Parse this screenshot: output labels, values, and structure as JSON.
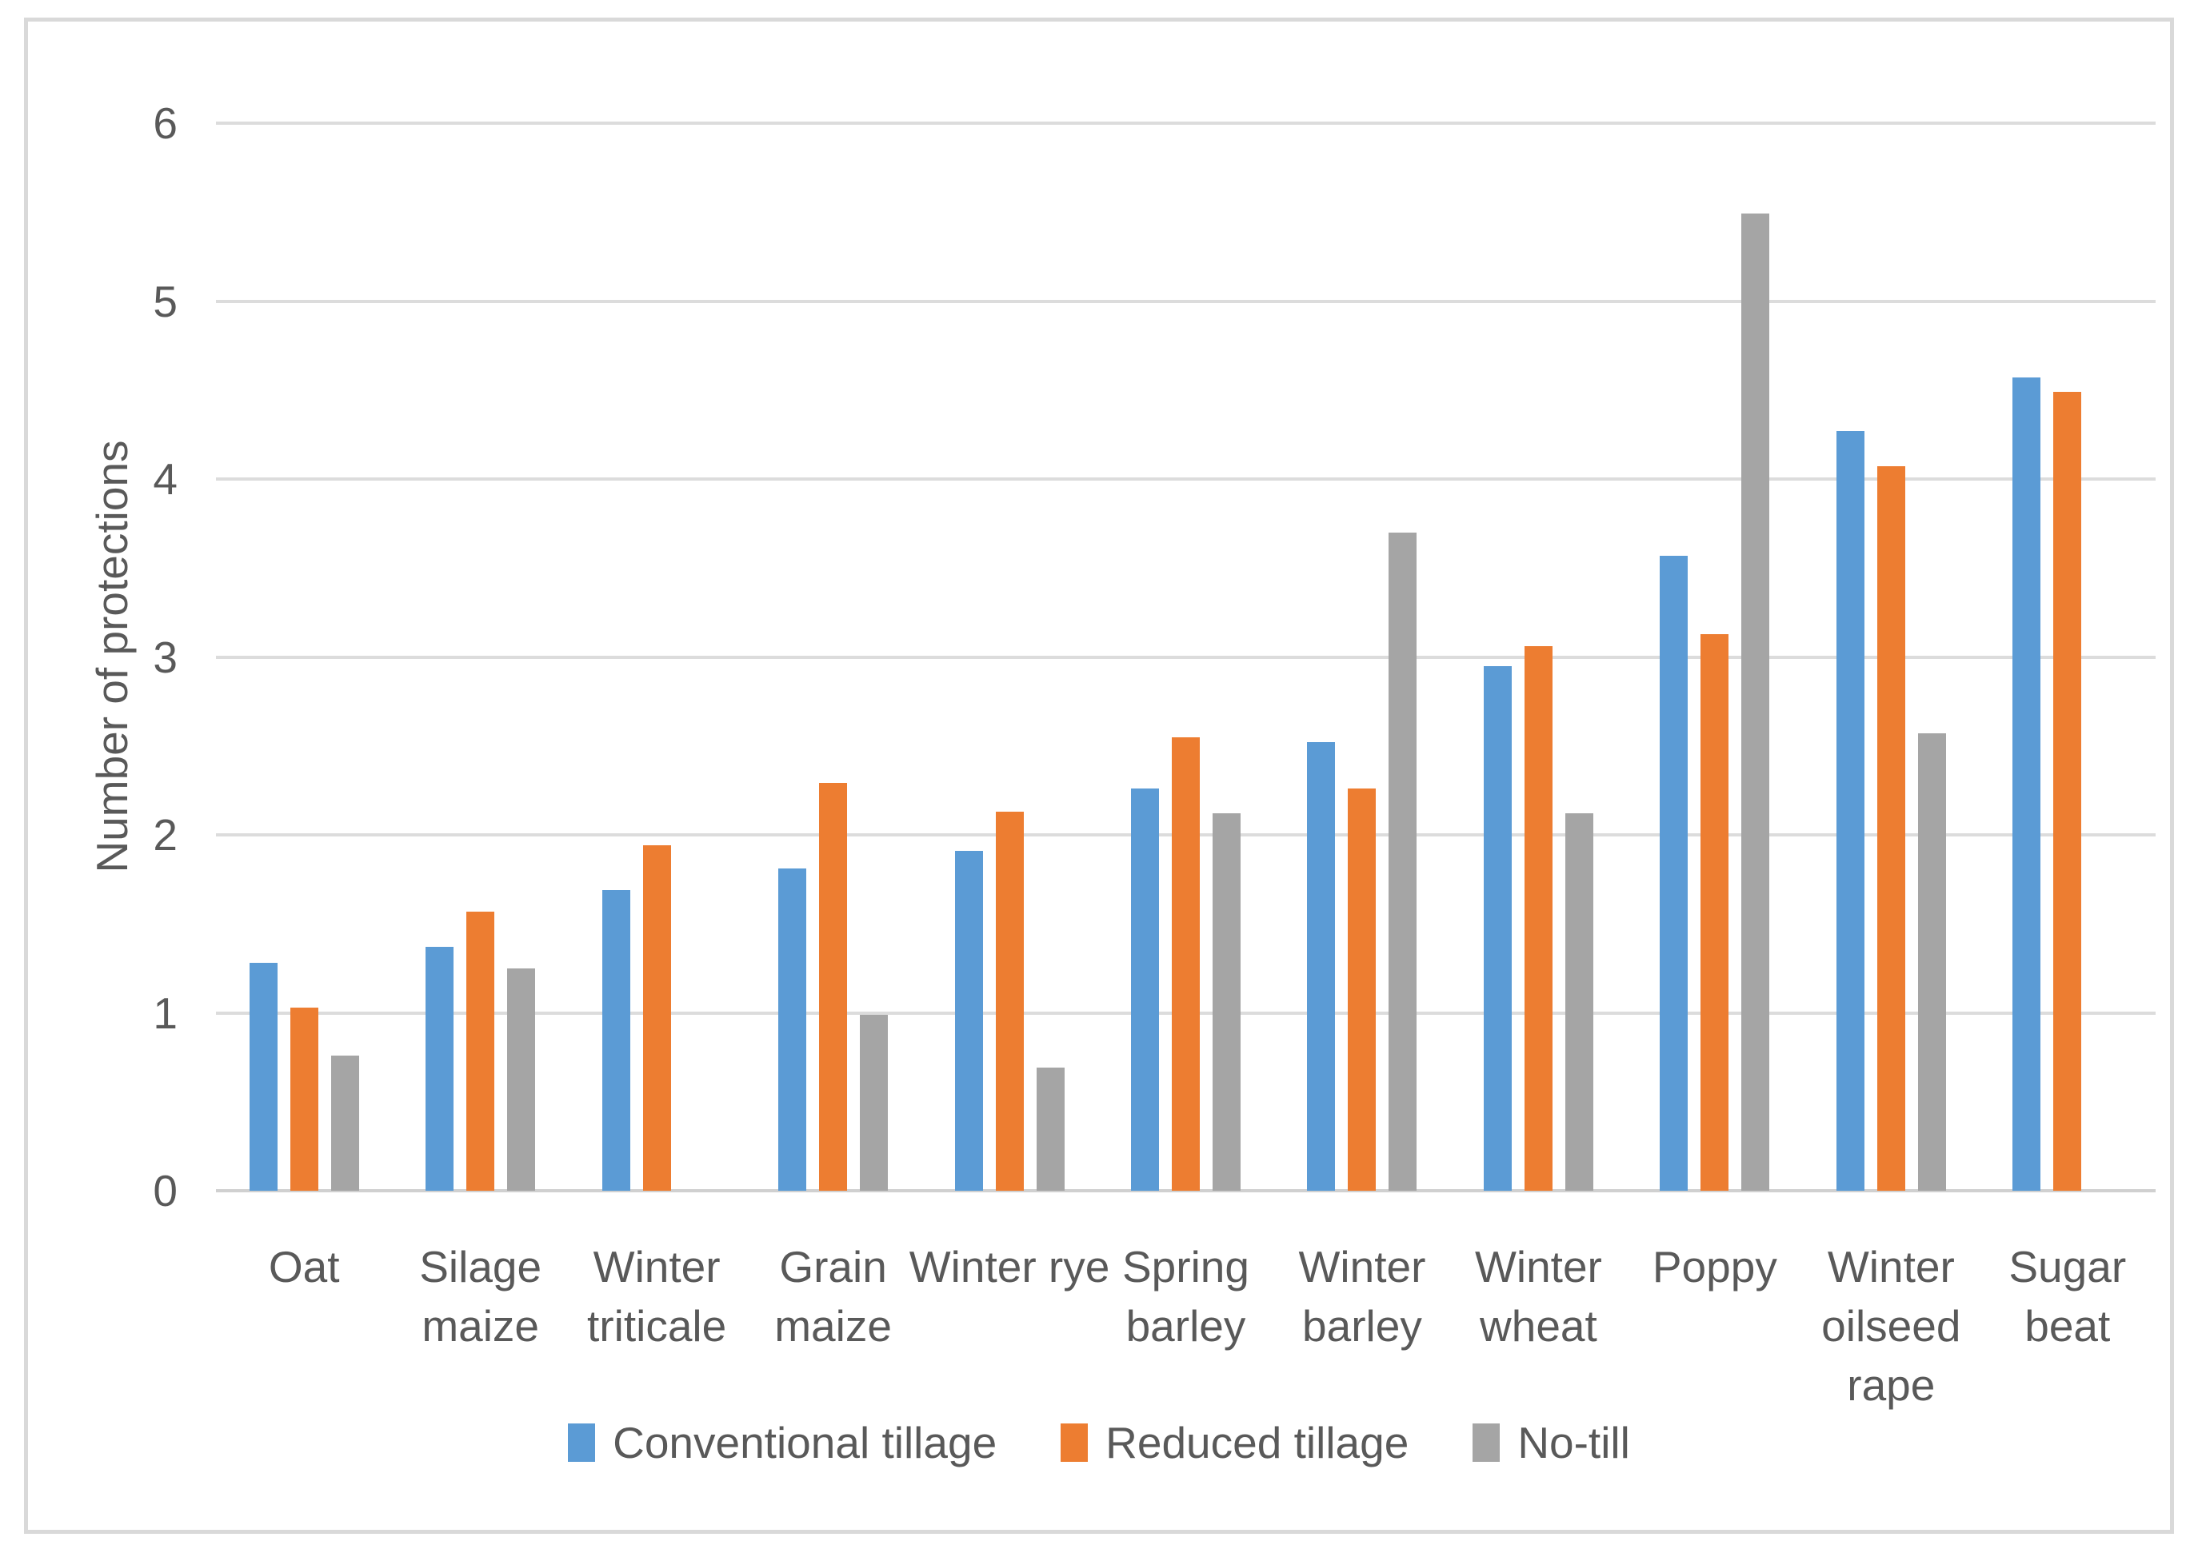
{
  "chart_data": {
    "type": "bar",
    "title": "",
    "ylabel": "Number of protections",
    "xlabel": "",
    "ylim": [
      0,
      6
    ],
    "yticks": [
      0,
      1,
      2,
      3,
      4,
      5,
      6
    ],
    "grid": true,
    "legend_position": "bottom",
    "categories": [
      "Oat",
      "Silage maize",
      "Winter triticale",
      "Grain maize",
      "Winter rye",
      "Spring barley",
      "Winter barley",
      "Winter wheat",
      "Poppy",
      "Winter oilseed rape",
      "Sugar beat"
    ],
    "series": [
      {
        "name": "Conventional tillage",
        "color": "#5B9BD5",
        "values": [
          1.28,
          1.37,
          1.69,
          1.81,
          1.91,
          2.26,
          2.52,
          2.95,
          3.57,
          4.27,
          4.57
        ]
      },
      {
        "name": "Reduced tillage",
        "color": "#ED7D31",
        "values": [
          1.03,
          1.57,
          1.94,
          2.29,
          2.13,
          2.55,
          2.26,
          3.06,
          3.13,
          4.07,
          4.49
        ]
      },
      {
        "name": "No-till",
        "color": "#A5A5A5",
        "values": [
          0.76,
          1.25,
          null,
          0.99,
          0.69,
          2.12,
          3.7,
          2.12,
          5.49,
          2.57,
          null
        ]
      }
    ]
  },
  "styles": {
    "text_color": "#595959",
    "gridline_color": "#DCDCDC",
    "axis_line_color": "#D0D0D0",
    "border_color": "#D9D9D9",
    "background": "#FFFFFF"
  }
}
